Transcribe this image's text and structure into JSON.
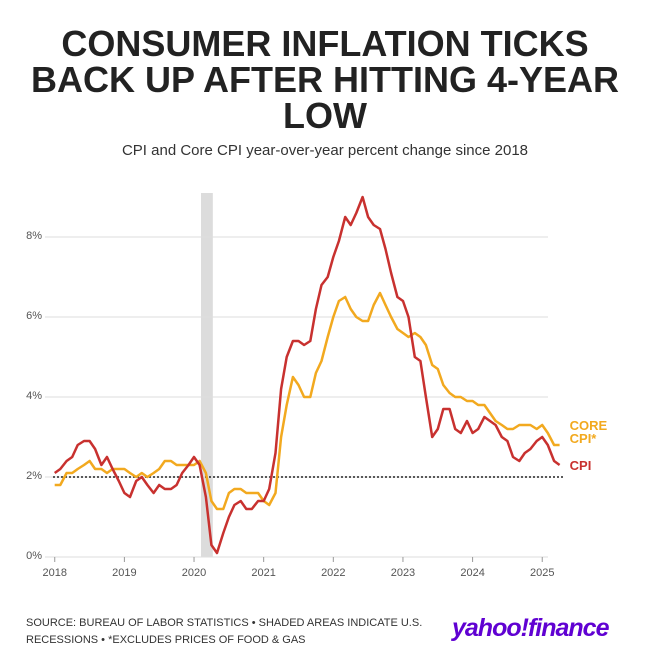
{
  "chart_data": {
    "type": "line",
    "title": "CONSUMER INFLATION TICKS BACK UP AFTER HITTING 4-YEAR LOW",
    "subtitle": "CPI and Core CPI year-over-year percent change since 2018",
    "source": "SOURCE: BUREAU OF LABOR STATISTICS • SHADED AREAS INDICATE U.S. RECESSIONS • *EXCLUDES PRICES OF FOOD & GAS",
    "brand": "yahoo!finance",
    "x": [
      2018,
      2018.08,
      2018.17,
      2018.25,
      2018.33,
      2018.42,
      2018.5,
      2018.58,
      2018.67,
      2018.75,
      2018.83,
      2018.92,
      2019,
      2019.08,
      2019.17,
      2019.25,
      2019.33,
      2019.42,
      2019.5,
      2019.58,
      2019.67,
      2019.75,
      2019.83,
      2019.92,
      2020,
      2020.08,
      2020.17,
      2020.25,
      2020.33,
      2020.42,
      2020.5,
      2020.58,
      2020.67,
      2020.75,
      2020.83,
      2020.92,
      2021,
      2021.08,
      2021.17,
      2021.25,
      2021.33,
      2021.42,
      2021.5,
      2021.58,
      2021.67,
      2021.75,
      2021.83,
      2021.92,
      2022,
      2022.08,
      2022.17,
      2022.25,
      2022.33,
      2022.42,
      2022.5,
      2022.58,
      2022.67,
      2022.75,
      2022.83,
      2022.92,
      2023,
      2023.08,
      2023.17,
      2023.25,
      2023.33,
      2023.42,
      2023.5,
      2023.58,
      2023.67,
      2023.75,
      2023.83,
      2023.92,
      2024,
      2024.08,
      2024.17,
      2024.25,
      2024.33,
      2024.42,
      2024.5,
      2024.58,
      2024.67,
      2024.75,
      2024.83,
      2024.92,
      2025,
      2025.08,
      2025.17,
      2025.25
    ],
    "series": [
      {
        "name": "CORE CPI*",
        "color": "#f2a91f",
        "values": [
          1.8,
          1.8,
          2.1,
          2.1,
          2.2,
          2.3,
          2.4,
          2.2,
          2.2,
          2.1,
          2.2,
          2.2,
          2.2,
          2.1,
          2.0,
          2.1,
          2.0,
          2.1,
          2.2,
          2.4,
          2.4,
          2.3,
          2.3,
          2.3,
          2.3,
          2.4,
          2.1,
          1.4,
          1.2,
          1.2,
          1.6,
          1.7,
          1.7,
          1.6,
          1.6,
          1.6,
          1.4,
          1.3,
          1.6,
          3.0,
          3.8,
          4.5,
          4.3,
          4.0,
          4.0,
          4.6,
          4.9,
          5.5,
          6.0,
          6.4,
          6.5,
          6.2,
          6.0,
          5.9,
          5.9,
          6.3,
          6.6,
          6.3,
          6.0,
          5.7,
          5.6,
          5.5,
          5.6,
          5.5,
          5.3,
          4.8,
          4.7,
          4.3,
          4.1,
          4.0,
          4.0,
          3.9,
          3.9,
          3.8,
          3.8,
          3.6,
          3.4,
          3.3,
          3.2,
          3.2,
          3.3,
          3.3,
          3.3,
          3.2,
          3.3,
          3.1,
          2.8,
          2.8
        ]
      },
      {
        "name": "CPI",
        "color": "#c8312f",
        "values": [
          2.1,
          2.2,
          2.4,
          2.5,
          2.8,
          2.9,
          2.9,
          2.7,
          2.3,
          2.5,
          2.2,
          1.9,
          1.6,
          1.5,
          1.9,
          2.0,
          1.8,
          1.6,
          1.8,
          1.7,
          1.7,
          1.8,
          2.1,
          2.3,
          2.5,
          2.3,
          1.5,
          0.3,
          0.1,
          0.6,
          1.0,
          1.3,
          1.4,
          1.2,
          1.2,
          1.4,
          1.4,
          1.7,
          2.6,
          4.2,
          5.0,
          5.4,
          5.4,
          5.3,
          5.4,
          6.2,
          6.8,
          7.0,
          7.5,
          7.9,
          8.5,
          8.3,
          8.6,
          9.0,
          8.5,
          8.3,
          8.2,
          7.7,
          7.1,
          6.5,
          6.4,
          6.0,
          5.0,
          4.9,
          4.0,
          3.0,
          3.2,
          3.7,
          3.7,
          3.2,
          3.1,
          3.4,
          3.1,
          3.2,
          3.5,
          3.4,
          3.3,
          3.0,
          2.9,
          2.5,
          2.4,
          2.6,
          2.7,
          2.9,
          3.0,
          2.8,
          2.4,
          2.3
        ]
      }
    ],
    "recessions": [
      [
        2020.1,
        2020.27
      ]
    ],
    "reference_line": 2,
    "xlim": [
      2017.86,
      2025.37
    ],
    "xticks": [
      2018,
      2019,
      2020,
      2021,
      2022,
      2023,
      2024,
      2025
    ],
    "ylim": [
      0,
      9.1
    ],
    "yticks": [
      {
        "value": 0,
        "label": "0%"
      },
      {
        "value": 2,
        "label": "2%"
      },
      {
        "value": 4,
        "label": "4%"
      },
      {
        "value": 6,
        "label": "6%"
      },
      {
        "value": 8,
        "label": "8%"
      }
    ],
    "grid": true
  }
}
